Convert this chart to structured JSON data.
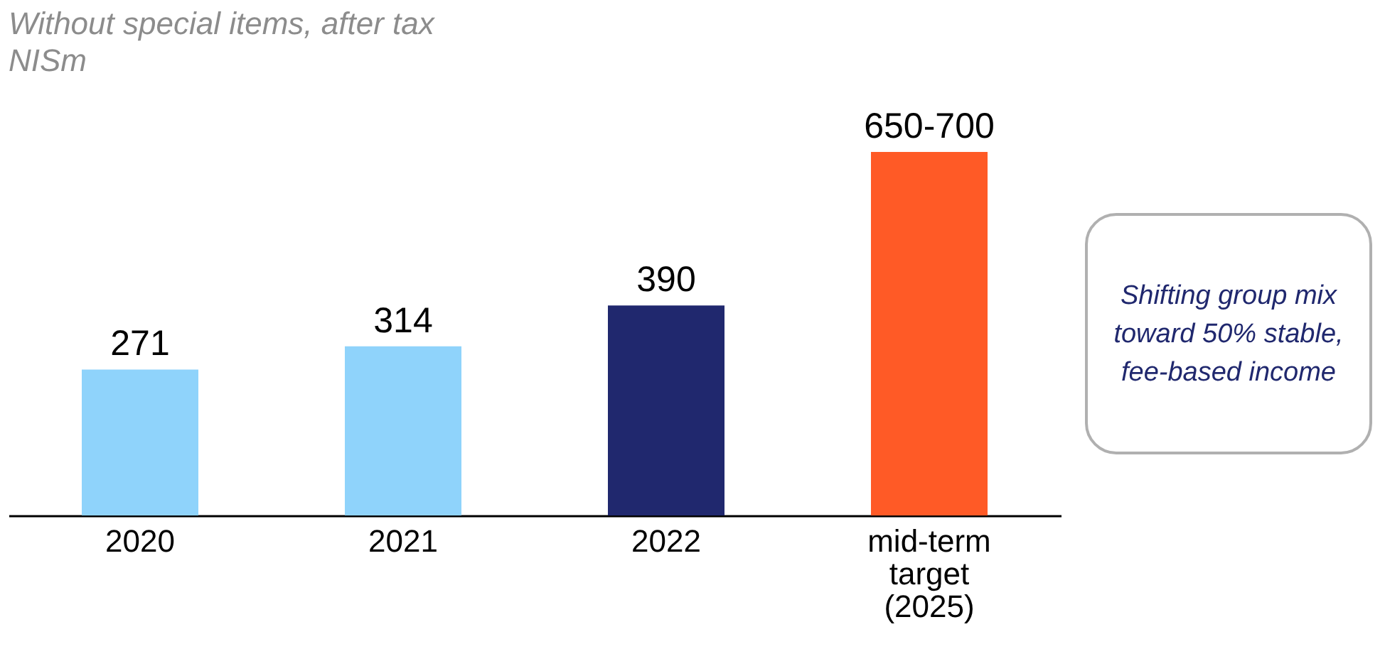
{
  "chart_data": {
    "type": "bar",
    "title": "Without special items, after tax",
    "subtitle": "NISm",
    "categories": [
      "2020",
      "2021",
      "2022",
      null,
      "mid-term target (2025)"
    ],
    "values": [
      271,
      314,
      390,
      null,
      675
    ],
    "value_labels": [
      "271",
      "314",
      "390",
      null,
      "650-700"
    ],
    "colors": [
      "#8fd3fb",
      "#8fd3fb",
      "#20286e",
      null,
      "#ff5a26"
    ],
    "annotations": [
      "Shifting group mix toward 50% stable, fee-based income"
    ]
  }
}
